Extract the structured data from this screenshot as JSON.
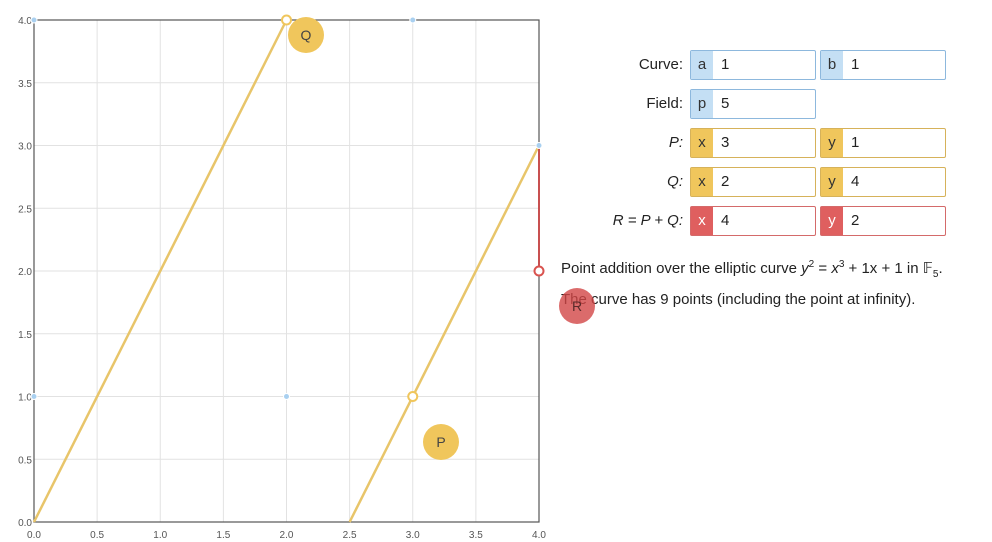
{
  "controls": {
    "curve": {
      "label": "Curve:",
      "a_tag": "a",
      "a_value": "1",
      "b_tag": "b",
      "b_value": "1"
    },
    "field": {
      "label": "Field:",
      "p_tag": "p",
      "p_value": "5"
    },
    "point_p": {
      "label": "P:",
      "x_tag": "x",
      "x_value": "3",
      "y_tag": "y",
      "y_value": "1"
    },
    "point_q": {
      "label": "Q:",
      "x_tag": "x",
      "x_value": "2",
      "y_tag": "y",
      "y_value": "4"
    },
    "point_r": {
      "label": "R = P + Q:",
      "x_tag": "x",
      "x_value": "4",
      "y_tag": "y",
      "y_value": "2"
    }
  },
  "description": {
    "line1_prefix": "Point addition over the elliptic curve ",
    "line1_formula_y": "y",
    "line1_formula_mid": " = ",
    "line1_formula_x": "x",
    "line1_formula_rest": " + 1x + 1 in ",
    "line1_field": "𝔽",
    "line1_field_sub": "5",
    "line1_end": ".",
    "exp2": "2",
    "exp3": "3",
    "line2": "The curve has 9 points (including the point at infinity)."
  },
  "handles": {
    "p": "P",
    "q": "Q",
    "r": "R"
  },
  "chart_data": {
    "type": "scatter",
    "xlim": [
      0,
      4
    ],
    "ylim": [
      0,
      4
    ],
    "x_ticks": [
      "0.0",
      "0.5",
      "1.0",
      "1.5",
      "2.0",
      "2.5",
      "3.0",
      "3.5",
      "4.0"
    ],
    "y_ticks": [
      "0.0",
      "0.5",
      "1.0",
      "1.5",
      "2.0",
      "2.5",
      "3.0",
      "3.5",
      "4.0"
    ],
    "grid": true,
    "curve_points": [
      [
        0,
        1
      ],
      [
        0,
        4
      ],
      [
        2,
        1
      ],
      [
        3,
        4
      ],
      [
        4,
        3
      ]
    ],
    "line_segments": [
      {
        "from": [
          0,
          0
        ],
        "to": [
          2,
          4
        ]
      },
      {
        "from": [
          2.5,
          0
        ],
        "to": [
          4,
          3
        ]
      }
    ],
    "reflection_segment": {
      "from": [
        4,
        3
      ],
      "to": [
        4,
        2
      ]
    },
    "P": [
      3,
      1
    ],
    "Q": [
      2,
      4
    ],
    "R": [
      4,
      2
    ],
    "colors": {
      "line": "#e8c56a",
      "reflection": "#c85050",
      "curve_point": "#a9d0f0",
      "P": "#f0c65c",
      "R": "#d9534f"
    }
  }
}
